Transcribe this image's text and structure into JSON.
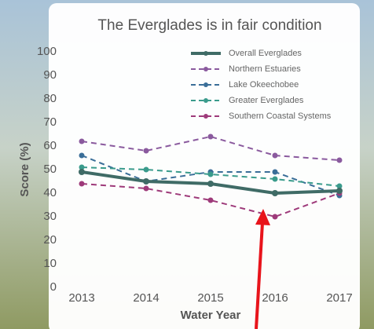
{
  "chart_data": {
    "type": "line",
    "title": "The Everglades is in fair condition",
    "xlabel": "Water Year",
    "ylabel": "Score (%)",
    "categories": [
      "2013",
      "2014",
      "2015",
      "2016",
      "2017"
    ],
    "series": [
      {
        "name": "Overall Everglades",
        "color": "#3f6b66",
        "dashed": false,
        "values": [
          49,
          45,
          44,
          40,
          41
        ]
      },
      {
        "name": "Northern Estuaries",
        "color": "#8a5a9e",
        "dashed": true,
        "values": [
          62,
          58,
          64,
          56,
          54
        ]
      },
      {
        "name": "Lake Okeechobee",
        "color": "#3a6e98",
        "dashed": true,
        "values": [
          56,
          45,
          49,
          49,
          39
        ]
      },
      {
        "name": "Greater Everglades",
        "color": "#3a9b8c",
        "dashed": true,
        "values": [
          51,
          50,
          48,
          46,
          43
        ]
      },
      {
        "name": "Southern Coastal Systems",
        "color": "#9e3a7a",
        "dashed": true,
        "values": [
          44,
          42,
          37,
          30,
          40
        ]
      }
    ],
    "ylim": [
      0,
      100
    ],
    "yticks": [
      0,
      10,
      20,
      30,
      40,
      50,
      60,
      70,
      80,
      90,
      100
    ],
    "grid": false,
    "legend": "top-right"
  }
}
